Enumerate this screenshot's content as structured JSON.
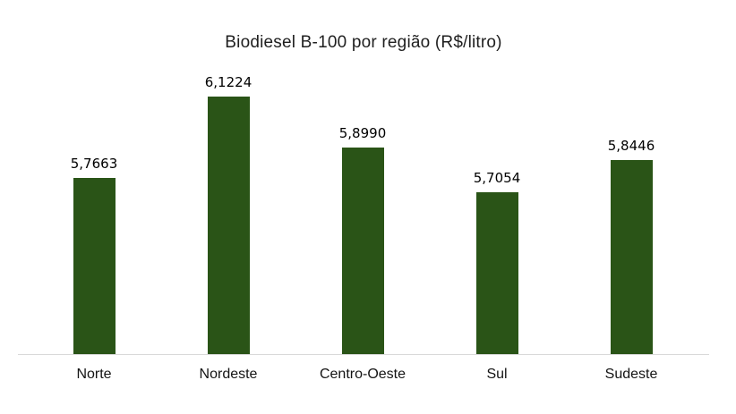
{
  "chart_data": {
    "type": "bar",
    "title": "Biodiesel B-100 por região (R$/litro)",
    "categories": [
      "Norte",
      "Nordeste",
      "Centro-Oeste",
      "Sul",
      "Sudeste"
    ],
    "values": [
      5.7663,
      6.1224,
      5.899,
      5.7054,
      5.8446
    ],
    "value_labels": [
      "5,7663",
      "6,1224",
      "5,8990",
      "5,7054",
      "5,8446"
    ],
    "xlabel": "",
    "ylabel": "",
    "ylim": [
      5.0,
      6.2
    ],
    "grid": false,
    "legend": false,
    "colors": {
      "bar": "#2a5417",
      "axis_line": "#d9d9d9",
      "title_text": "#1f1f1f",
      "label_text": "#000000",
      "background": "#ffffff"
    }
  }
}
